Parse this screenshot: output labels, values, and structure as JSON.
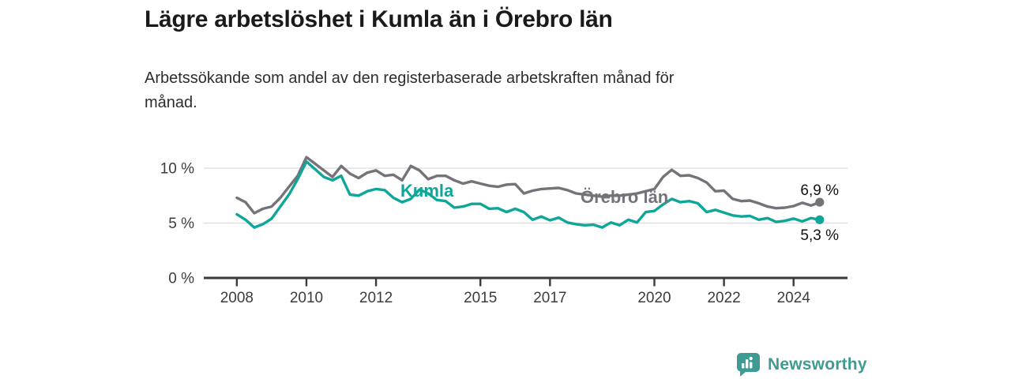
{
  "header": {
    "title": "Lägre arbetslöshet i Kumla än i Örebro län",
    "subtitle_line1": "Arbetssökande som andel av den registerbaserade arbetskraften månad för",
    "subtitle_line2": "månad."
  },
  "colors": {
    "kumla": "#0FA69A",
    "orebro": "#757379",
    "brand_teal": "#3D9B93",
    "axis_line": "#3a3a3a",
    "axis_text": "#3c3c3c",
    "grid": "#dadada",
    "end_label_text": "#111111"
  },
  "chart_data": {
    "type": "line",
    "title": "Lägre arbetslöshet i Kumla än i Örebro län",
    "xlabel": "",
    "ylabel": "Arbetssökande som andel av arbetskraften (%)",
    "grid": "horizontal",
    "legend_position": "inline-labels",
    "xlim": [
      2007.05,
      2025.55
    ],
    "ylim": [
      0,
      11.5
    ],
    "x": [
      2008.0,
      2008.25,
      2008.5,
      2008.75,
      2009.0,
      2009.25,
      2009.5,
      2009.75,
      2010.0,
      2010.25,
      2010.5,
      2010.75,
      2011.0,
      2011.25,
      2011.5,
      2011.75,
      2012.0,
      2012.25,
      2012.5,
      2012.75,
      2013.0,
      2013.25,
      2013.5,
      2013.75,
      2014.0,
      2014.25,
      2014.5,
      2014.75,
      2015.0,
      2015.25,
      2015.5,
      2015.75,
      2016.0,
      2016.25,
      2016.5,
      2016.75,
      2017.0,
      2017.25,
      2017.5,
      2017.75,
      2018.0,
      2018.25,
      2018.5,
      2018.75,
      2019.0,
      2019.25,
      2019.5,
      2019.75,
      2020.0,
      2020.25,
      2020.5,
      2020.75,
      2021.0,
      2021.25,
      2021.5,
      2021.75,
      2022.0,
      2022.25,
      2022.5,
      2022.75,
      2023.0,
      2023.25,
      2023.5,
      2023.75,
      2024.0,
      2024.25,
      2024.5,
      2024.75
    ],
    "series": [
      {
        "name": "Örebro län",
        "color": "#757379",
        "end_value_label": "6,9 %",
        "values": [
          7.3,
          6.9,
          5.9,
          6.3,
          6.5,
          7.3,
          8.3,
          9.3,
          11.0,
          10.4,
          9.8,
          9.2,
          10.2,
          9.5,
          9.1,
          9.6,
          9.8,
          9.3,
          9.4,
          8.9,
          10.2,
          9.8,
          9.0,
          9.3,
          9.3,
          8.9,
          8.6,
          8.8,
          8.6,
          8.4,
          8.3,
          8.5,
          8.55,
          7.7,
          7.95,
          8.1,
          8.15,
          8.2,
          8.0,
          7.7,
          7.6,
          7.5,
          7.4,
          7.5,
          7.5,
          7.6,
          7.7,
          7.9,
          8.1,
          9.2,
          9.85,
          9.3,
          9.35,
          9.1,
          8.7,
          7.9,
          7.95,
          7.2,
          7.0,
          7.05,
          6.8,
          6.5,
          6.35,
          6.4,
          6.55,
          6.85,
          6.6,
          6.9
        ]
      },
      {
        "name": "Kumla",
        "color": "#0FA69A",
        "end_value_label": "5,3 %",
        "values": [
          5.8,
          5.3,
          4.6,
          4.9,
          5.4,
          6.5,
          7.6,
          9.0,
          10.6,
          9.9,
          9.2,
          8.9,
          9.3,
          7.6,
          7.5,
          7.9,
          8.1,
          8.0,
          7.3,
          6.9,
          7.2,
          8.05,
          7.7,
          7.1,
          7.0,
          6.4,
          6.5,
          6.75,
          6.75,
          6.3,
          6.35,
          6.0,
          6.3,
          6.0,
          5.3,
          5.6,
          5.25,
          5.5,
          5.05,
          4.9,
          4.8,
          4.85,
          4.6,
          5.05,
          4.8,
          5.3,
          5.05,
          6.0,
          6.1,
          6.7,
          7.2,
          6.9,
          7.0,
          6.8,
          6.0,
          6.2,
          5.95,
          5.7,
          5.6,
          5.65,
          5.3,
          5.45,
          5.1,
          5.2,
          5.4,
          5.15,
          5.45,
          5.3
        ]
      }
    ],
    "yticks": [
      {
        "value": 0,
        "label": "0 %"
      },
      {
        "value": 5,
        "label": "5 %"
      },
      {
        "value": 10,
        "label": "10 %"
      }
    ],
    "xticks": [
      {
        "value": 2008,
        "label": "2008"
      },
      {
        "value": 2010,
        "label": "2010"
      },
      {
        "value": 2012,
        "label": "2012"
      },
      {
        "value": 2015,
        "label": "2015"
      },
      {
        "value": 2017,
        "label": "2017"
      },
      {
        "value": 2020,
        "label": "2020"
      },
      {
        "value": 2022,
        "label": "2022"
      },
      {
        "value": 2024,
        "label": "2024"
      }
    ]
  },
  "annotations": {
    "kumla_series_label": "Kumla",
    "orebro_series_label": "Örebro län",
    "orebro_end_label": "6,9 %",
    "kumla_end_label": "5,3 %"
  },
  "footer": {
    "brand_name": "Newsworthy",
    "brand_icon": "bar-chart-speech-bubble-icon"
  }
}
